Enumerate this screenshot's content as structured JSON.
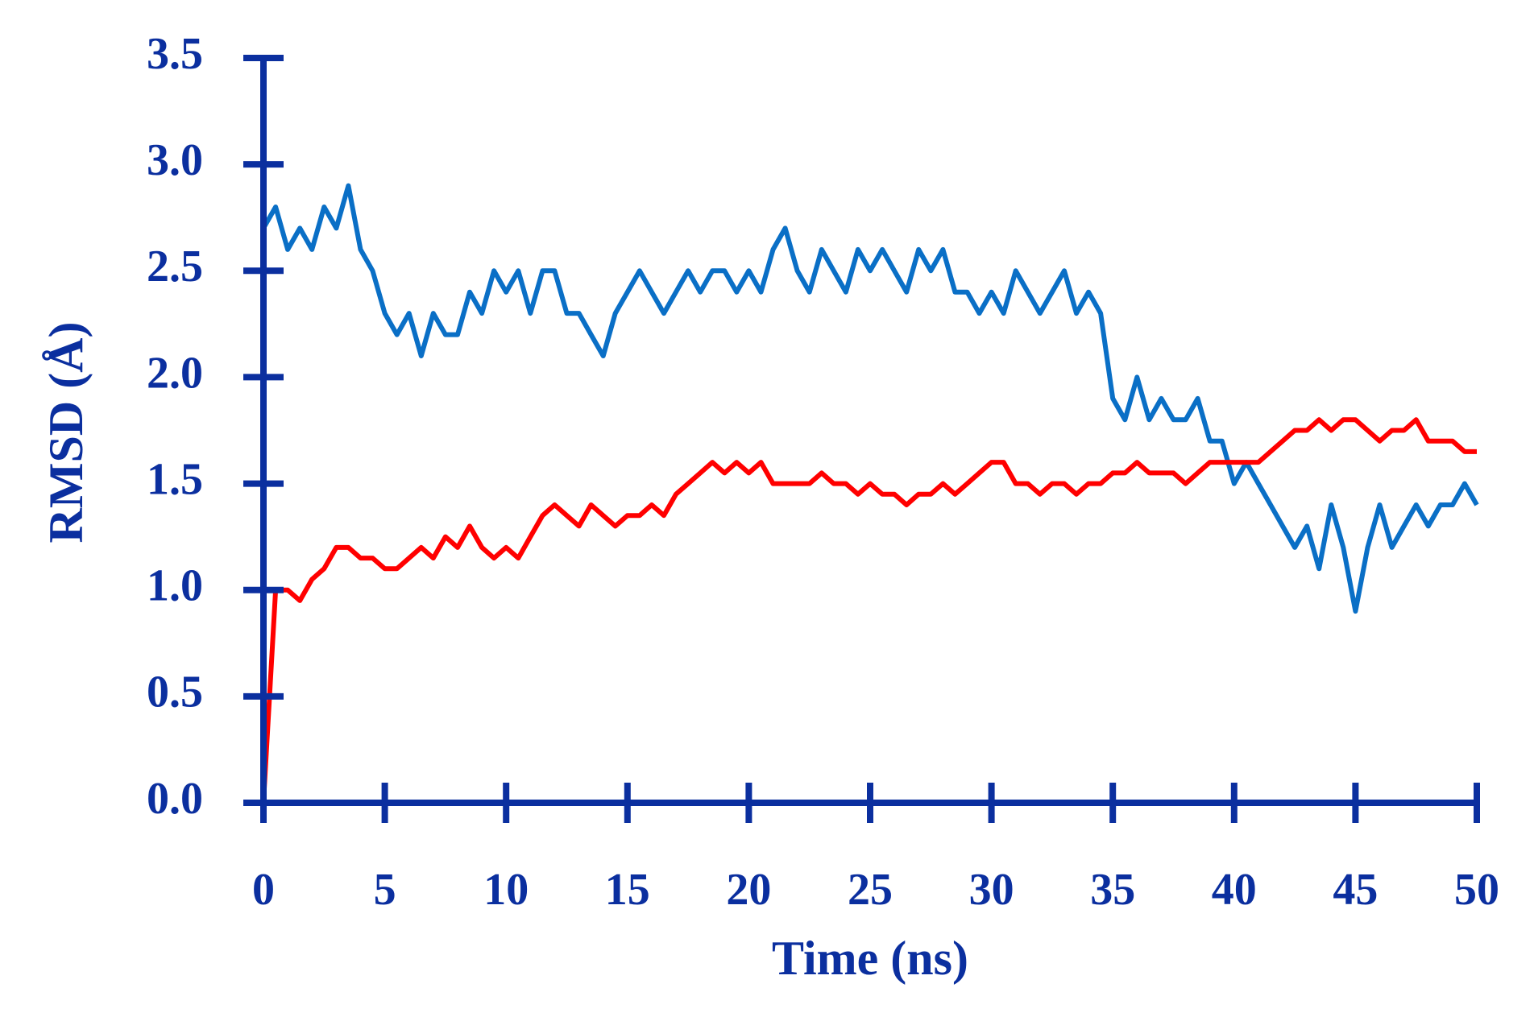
{
  "chart_data": {
    "type": "line",
    "x_label": "Time (ns)",
    "y_label": "RMSD (Å)",
    "axis_color": "#0b2f9f",
    "xlim": [
      0,
      50
    ],
    "xticks": [
      0,
      5,
      10,
      15,
      20,
      25,
      30,
      35,
      40,
      45,
      50
    ],
    "ylim": [
      0,
      3.5
    ],
    "yticks": [
      {
        "value": 0,
        "label": "0.0"
      },
      0.5,
      {
        "value": 1,
        "label": "1.0"
      },
      1.5,
      {
        "value": 2,
        "label": "2.0"
      },
      2.5,
      {
        "value": 3,
        "label": "3.0"
      },
      3.5
    ],
    "x": [
      0,
      0.5,
      1,
      1.5,
      2,
      2.5,
      3,
      3.5,
      4,
      4.5,
      5,
      5.5,
      6,
      6.5,
      7,
      7.5,
      8,
      8.5,
      9,
      9.5,
      10,
      10.5,
      11,
      11.5,
      12,
      12.5,
      13,
      13.5,
      14,
      14.5,
      15,
      15.5,
      16,
      16.5,
      17,
      17.5,
      18,
      18.5,
      19,
      19.5,
      20,
      20.5,
      21,
      21.5,
      22,
      22.5,
      23,
      23.5,
      24,
      24.5,
      25,
      25.5,
      26,
      26.5,
      27,
      27.5,
      28,
      28.5,
      29,
      29.5,
      30,
      30.5,
      31,
      31.5,
      32,
      32.5,
      33,
      33.5,
      34,
      34.5,
      35,
      35.5,
      36,
      36.5,
      37,
      37.5,
      38,
      38.5,
      39,
      39.5,
      40,
      40.5,
      41,
      41.5,
      42,
      42.5,
      43,
      43.5,
      44,
      44.5,
      45,
      45.5,
      46,
      46.5,
      47,
      47.5,
      48,
      48.5,
      49,
      49.5,
      50
    ],
    "series": [
      {
        "color": "#0a6fc6",
        "values": [
          2.7,
          2.8,
          2.6,
          2.7,
          2.6,
          2.8,
          2.7,
          2.9,
          2.6,
          2.5,
          2.3,
          2.2,
          2.3,
          2.1,
          2.3,
          2.2,
          2.2,
          2.4,
          2.3,
          2.5,
          2.4,
          2.5,
          2.3,
          2.5,
          2.5,
          2.3,
          2.3,
          2.2,
          2.1,
          2.3,
          2.4,
          2.5,
          2.4,
          2.3,
          2.4,
          2.5,
          2.4,
          2.5,
          2.5,
          2.4,
          2.5,
          2.4,
          2.6,
          2.7,
          2.5,
          2.4,
          2.6,
          2.5,
          2.4,
          2.6,
          2.5,
          2.6,
          2.5,
          2.4,
          2.6,
          2.5,
          2.6,
          2.4,
          2.4,
          2.3,
          2.4,
          2.3,
          2.5,
          2.4,
          2.3,
          2.4,
          2.5,
          2.3,
          2.4,
          2.3,
          1.9,
          1.8,
          2.0,
          1.8,
          1.9,
          1.8,
          1.8,
          1.9,
          1.7,
          1.7,
          1.5,
          1.6,
          1.5,
          1.4,
          1.3,
          1.2,
          1.3,
          1.1,
          1.4,
          1.2,
          0.9,
          1.2,
          1.4,
          1.2,
          1.3,
          1.4,
          1.3,
          1.4,
          1.4,
          1.5,
          1.4
        ]
      },
      {
        "color": "#ff0000",
        "values": [
          0,
          1.0,
          1.0,
          0.95,
          1.05,
          1.1,
          1.2,
          1.2,
          1.15,
          1.15,
          1.1,
          1.1,
          1.15,
          1.2,
          1.15,
          1.25,
          1.2,
          1.3,
          1.2,
          1.15,
          1.2,
          1.15,
          1.25,
          1.35,
          1.4,
          1.35,
          1.3,
          1.4,
          1.35,
          1.3,
          1.35,
          1.35,
          1.4,
          1.35,
          1.45,
          1.5,
          1.55,
          1.6,
          1.55,
          1.6,
          1.55,
          1.6,
          1.5,
          1.5,
          1.5,
          1.5,
          1.55,
          1.5,
          1.5,
          1.45,
          1.5,
          1.45,
          1.45,
          1.4,
          1.45,
          1.45,
          1.5,
          1.45,
          1.5,
          1.55,
          1.6,
          1.6,
          1.5,
          1.5,
          1.45,
          1.5,
          1.5,
          1.45,
          1.5,
          1.5,
          1.55,
          1.55,
          1.6,
          1.55,
          1.55,
          1.55,
          1.5,
          1.55,
          1.6,
          1.6,
          1.6,
          1.6,
          1.6,
          1.65,
          1.7,
          1.75,
          1.75,
          1.8,
          1.75,
          1.8,
          1.8,
          1.75,
          1.7,
          1.75,
          1.75,
          1.8,
          1.7,
          1.7,
          1.7,
          1.65,
          1.65
        ]
      }
    ]
  }
}
